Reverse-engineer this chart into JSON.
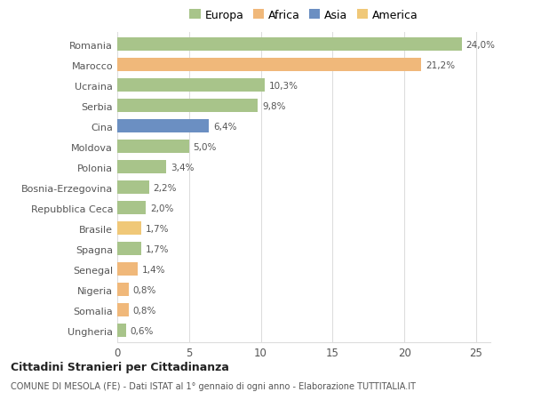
{
  "categories": [
    "Romania",
    "Marocco",
    "Ucraina",
    "Serbia",
    "Cina",
    "Moldova",
    "Polonia",
    "Bosnia-Erzegovina",
    "Repubblica Ceca",
    "Brasile",
    "Spagna",
    "Senegal",
    "Nigeria",
    "Somalia",
    "Ungheria"
  ],
  "values": [
    24.0,
    21.2,
    10.3,
    9.8,
    6.4,
    5.0,
    3.4,
    2.2,
    2.0,
    1.7,
    1.7,
    1.4,
    0.8,
    0.8,
    0.6
  ],
  "labels": [
    "24,0%",
    "21,2%",
    "10,3%",
    "9,8%",
    "6,4%",
    "5,0%",
    "3,4%",
    "2,2%",
    "2,0%",
    "1,7%",
    "1,7%",
    "1,4%",
    "0,8%",
    "0,8%",
    "0,6%"
  ],
  "colors": [
    "#a8c48a",
    "#f0b87a",
    "#a8c48a",
    "#a8c48a",
    "#6b8fc2",
    "#a8c48a",
    "#a8c48a",
    "#a8c48a",
    "#a8c48a",
    "#f0c878",
    "#a8c48a",
    "#f0b87a",
    "#f0b87a",
    "#f0b87a",
    "#a8c48a"
  ],
  "legend_labels": [
    "Europa",
    "Africa",
    "Asia",
    "America"
  ],
  "legend_colors": [
    "#a8c48a",
    "#f0b87a",
    "#6b8fc2",
    "#f0c878"
  ],
  "title": "Cittadini Stranieri per Cittadinanza",
  "subtitle": "COMUNE DI MESOLA (FE) - Dati ISTAT al 1° gennaio di ogni anno - Elaborazione TUTTITALIA.IT",
  "xlim": [
    0,
    26
  ],
  "xticks": [
    0,
    5,
    10,
    15,
    20,
    25
  ],
  "background_color": "#ffffff",
  "grid_color": "#dddddd"
}
